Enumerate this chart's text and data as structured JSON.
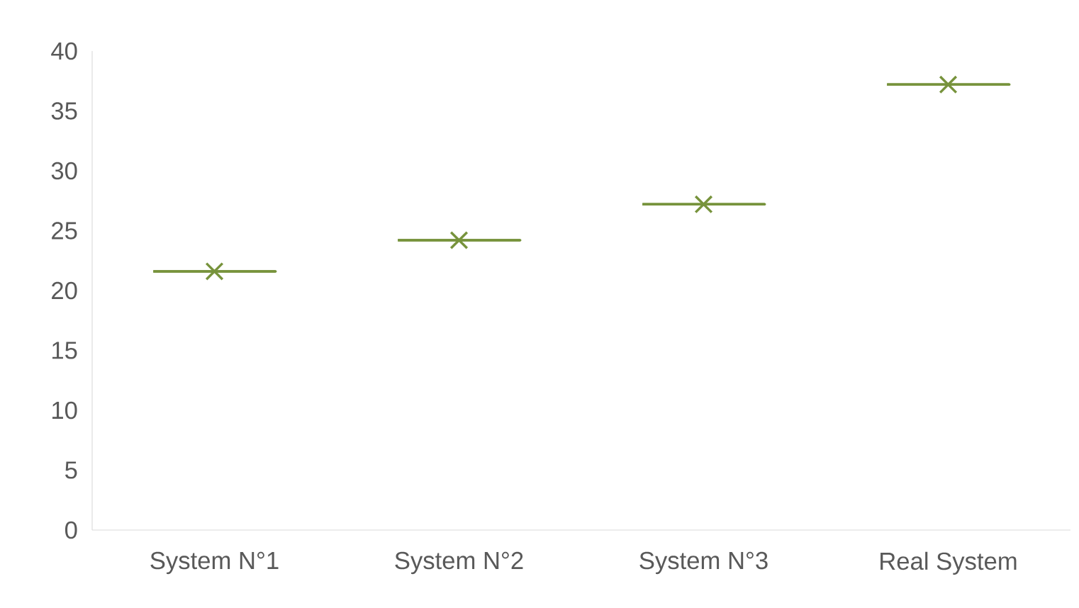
{
  "chart_data": {
    "type": "box",
    "categories": [
      "System N°1",
      "System N°2",
      "System N°3",
      "Real System"
    ],
    "boxes": [
      {
        "low": 21.6,
        "q1": 21.6,
        "median": 21.6,
        "q3": 21.6,
        "high": 21.6,
        "mean": 21.6
      },
      {
        "low": 24.2,
        "q1": 24.2,
        "median": 24.2,
        "q3": 24.2,
        "high": 24.2,
        "mean": 24.2
      },
      {
        "low": 27.2,
        "q1": 27.2,
        "median": 27.2,
        "q3": 27.2,
        "high": 27.2,
        "mean": 27.2
      },
      {
        "low": 37.2,
        "q1": 37.2,
        "median": 37.2,
        "q3": 37.2,
        "high": 37.2,
        "mean": 37.2
      }
    ],
    "color": "#77933c",
    "ylim": [
      0,
      40
    ],
    "yticks": [
      0,
      5,
      10,
      15,
      20,
      25,
      30,
      35,
      40
    ],
    "marker": "cross"
  }
}
